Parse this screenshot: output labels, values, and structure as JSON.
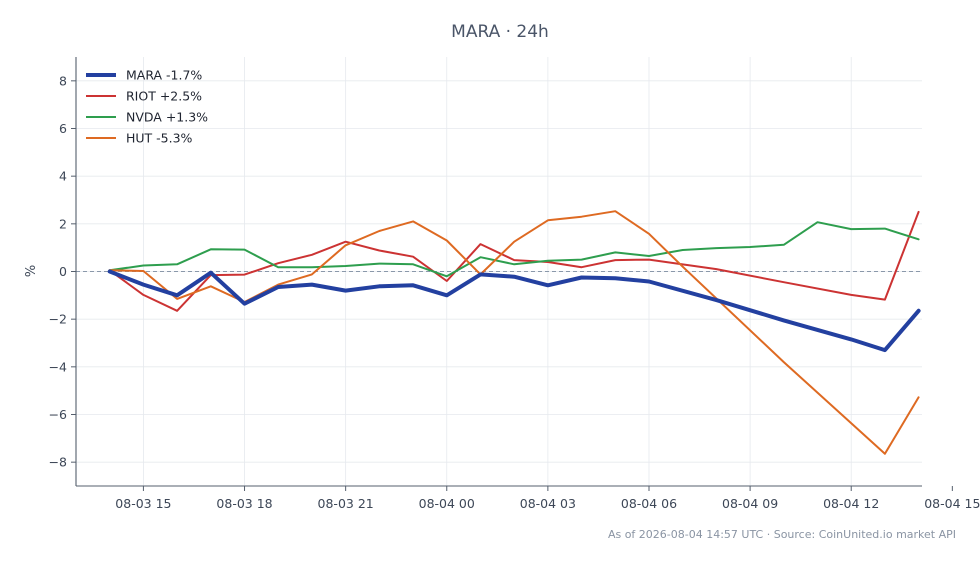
{
  "chart_data": {
    "type": "line",
    "title": "MARA · 24h",
    "xlabel": "",
    "ylabel": "%",
    "ylim": [
      -9,
      9
    ],
    "yticks": [
      -8,
      -6,
      -4,
      -2,
      0,
      2,
      4,
      6,
      8
    ],
    "ytick_labels": [
      "−8",
      "−6",
      "−4",
      "−2",
      "0",
      "2",
      "4",
      "6",
      "8"
    ],
    "xlim": [
      13.0,
      38.1
    ],
    "xticks": [
      15,
      18,
      21,
      24,
      27,
      30,
      33,
      36,
      39
    ],
    "xtick_labels": [
      "08-03 15",
      "08-03 18",
      "08-03 21",
      "08-04 00",
      "08-04 03",
      "08-04 06",
      "08-04 09",
      "08-04 12",
      "08-04 15"
    ],
    "grid": true,
    "legend_position": "top-left",
    "reference_line": 0,
    "x_unit_note": "hours",
    "series": [
      {
        "name": "MARA -1.7%",
        "color": "#2340a0",
        "width": 4,
        "points": [
          [
            14,
            0
          ],
          [
            15,
            -0.55
          ],
          [
            16,
            -1.0
          ],
          [
            17,
            -0.05
          ],
          [
            18,
            -1.35
          ],
          [
            19,
            -0.65
          ],
          [
            20,
            -0.55
          ],
          [
            21,
            -0.8
          ],
          [
            22,
            -0.62
          ],
          [
            23,
            -0.58
          ],
          [
            24,
            -1.0
          ],
          [
            25,
            -0.12
          ],
          [
            26,
            -0.22
          ],
          [
            27,
            -0.58
          ],
          [
            28,
            -0.25
          ],
          [
            29,
            -0.28
          ],
          [
            30,
            -0.42
          ],
          [
            32,
            -1.2
          ],
          [
            34,
            -2.05
          ],
          [
            36,
            -2.85
          ],
          [
            37,
            -3.3
          ],
          [
            38,
            -1.65
          ]
        ]
      },
      {
        "name": "RIOT +2.5%",
        "color": "#cc3333",
        "width": 2,
        "points": [
          [
            14,
            0.05
          ],
          [
            15,
            -0.98
          ],
          [
            16,
            -1.65
          ],
          [
            17,
            -0.15
          ],
          [
            18,
            -0.13
          ],
          [
            19,
            0.35
          ],
          [
            20,
            0.7
          ],
          [
            21,
            1.25
          ],
          [
            22,
            0.88
          ],
          [
            23,
            0.62
          ],
          [
            24,
            -0.4
          ],
          [
            25,
            1.15
          ],
          [
            26,
            0.48
          ],
          [
            27,
            0.4
          ],
          [
            28,
            0.18
          ],
          [
            29,
            0.48
          ],
          [
            30,
            0.5
          ],
          [
            32,
            0.1
          ],
          [
            34,
            -0.45
          ],
          [
            36,
            -0.98
          ],
          [
            37,
            -1.18
          ],
          [
            38,
            2.5
          ]
        ]
      },
      {
        "name": "NVDA +1.3%",
        "color": "#2e9e4e",
        "width": 2,
        "points": [
          [
            14,
            0.05
          ],
          [
            15,
            0.25
          ],
          [
            16,
            0.3
          ],
          [
            17,
            0.93
          ],
          [
            18,
            0.92
          ],
          [
            19,
            0.18
          ],
          [
            20,
            0.18
          ],
          [
            21,
            0.23
          ],
          [
            22,
            0.33
          ],
          [
            23,
            0.3
          ],
          [
            24,
            -0.2
          ],
          [
            25,
            0.6
          ],
          [
            26,
            0.3
          ],
          [
            27,
            0.45
          ],
          [
            28,
            0.5
          ],
          [
            29,
            0.8
          ],
          [
            30,
            0.65
          ],
          [
            31,
            0.9
          ],
          [
            32,
            0.98
          ],
          [
            33,
            1.03
          ],
          [
            34,
            1.12
          ],
          [
            35,
            2.07
          ],
          [
            36,
            1.78
          ],
          [
            37,
            1.8
          ],
          [
            38,
            1.35
          ]
        ]
      },
      {
        "name": "HUT -5.3%",
        "color": "#de6a22",
        "width": 2,
        "points": [
          [
            14,
            0.05
          ],
          [
            15,
            0.02
          ],
          [
            16,
            -1.15
          ],
          [
            17,
            -0.62
          ],
          [
            18,
            -1.28
          ],
          [
            19,
            -0.55
          ],
          [
            20,
            -0.12
          ],
          [
            21,
            1.1
          ],
          [
            22,
            1.7
          ],
          [
            23,
            2.1
          ],
          [
            24,
            1.3
          ],
          [
            25,
            -0.12
          ],
          [
            26,
            1.25
          ],
          [
            27,
            2.15
          ],
          [
            28,
            2.3
          ],
          [
            29,
            2.53
          ],
          [
            30,
            1.58
          ],
          [
            31,
            0.2
          ],
          [
            34,
            -3.8
          ],
          [
            37,
            -7.65
          ],
          [
            38,
            -5.28
          ]
        ]
      }
    ]
  },
  "footer": "As of 2026-08-04 14:57 UTC · Source: CoinUnited.io market API"
}
